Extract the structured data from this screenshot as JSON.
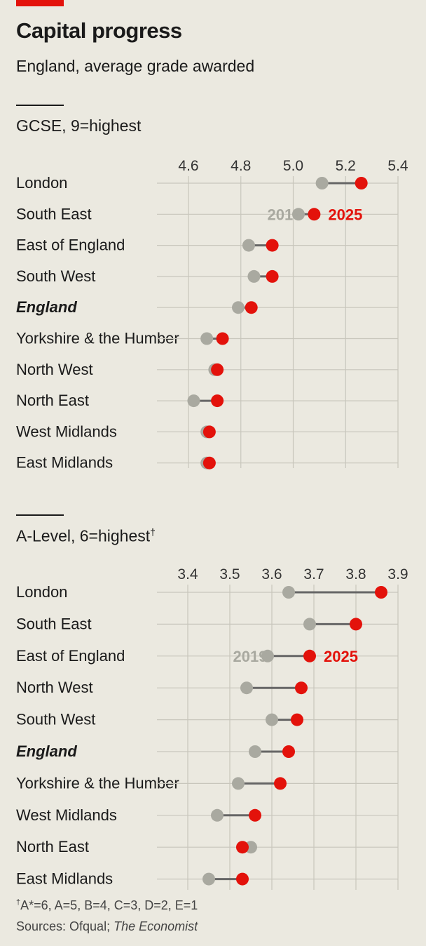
{
  "header": {
    "title": "Capital progress",
    "subtitle": "England, average grade awarded"
  },
  "colors": {
    "y2019": "#a9a9a0",
    "y2025": "#e3120b",
    "connector": "#666666",
    "grid": "#c8c6bc"
  },
  "chart_data": [
    {
      "type": "dot-plot",
      "title": "GCSE, 9=highest",
      "legend": [
        "2019",
        "2025"
      ],
      "xlim": [
        4.6,
        5.4
      ],
      "ticks": [
        "4.6",
        "4.8",
        "5.0",
        "5.2",
        "5.4"
      ],
      "tick_values": [
        4.6,
        4.8,
        5.0,
        5.2,
        5.4
      ],
      "legend_row": 1,
      "rows": [
        {
          "label": "London",
          "v2019": 5.11,
          "v2025": 5.26,
          "bold": false
        },
        {
          "label": "South East",
          "v2019": 5.02,
          "v2025": 5.08,
          "bold": false
        },
        {
          "label": "East of England",
          "v2019": 4.83,
          "v2025": 4.92,
          "bold": false
        },
        {
          "label": "South West",
          "v2019": 4.85,
          "v2025": 4.92,
          "bold": false
        },
        {
          "label": "England",
          "v2019": 4.79,
          "v2025": 4.84,
          "bold": true
        },
        {
          "label": "Yorkshire & the Humber",
          "v2019": 4.67,
          "v2025": 4.73,
          "bold": false
        },
        {
          "label": "North West",
          "v2019": 4.7,
          "v2025": 4.71,
          "bold": false
        },
        {
          "label": "North East",
          "v2019": 4.62,
          "v2025": 4.71,
          "bold": false
        },
        {
          "label": "West Midlands",
          "v2019": 4.67,
          "v2025": 4.68,
          "bold": false
        },
        {
          "label": "East Midlands",
          "v2019": 4.67,
          "v2025": 4.68,
          "bold": false
        }
      ]
    },
    {
      "type": "dot-plot",
      "title": "A-Level, 6=highest",
      "title_mark": "†",
      "legend": [
        "2019",
        "2025"
      ],
      "xlim": [
        3.4,
        3.9
      ],
      "ticks": [
        "3.4",
        "3.5",
        "3.6",
        "3.7",
        "3.8",
        "3.9"
      ],
      "tick_values": [
        3.4,
        3.5,
        3.6,
        3.7,
        3.8,
        3.9
      ],
      "legend_row": 2,
      "rows": [
        {
          "label": "London",
          "v2019": 3.64,
          "v2025": 3.86,
          "bold": false
        },
        {
          "label": "South East",
          "v2019": 3.69,
          "v2025": 3.8,
          "bold": false
        },
        {
          "label": "East of England",
          "v2019": 3.59,
          "v2025": 3.69,
          "bold": false
        },
        {
          "label": "North West",
          "v2019": 3.54,
          "v2025": 3.67,
          "bold": false
        },
        {
          "label": "South West",
          "v2019": 3.6,
          "v2025": 3.66,
          "bold": false
        },
        {
          "label": "England",
          "v2019": 3.56,
          "v2025": 3.64,
          "bold": true
        },
        {
          "label": "Yorkshire & the Humber",
          "v2019": 3.52,
          "v2025": 3.62,
          "bold": false
        },
        {
          "label": "West Midlands",
          "v2019": 3.47,
          "v2025": 3.56,
          "bold": false
        },
        {
          "label": "North East",
          "v2019": 3.55,
          "v2025": 3.53,
          "bold": false
        },
        {
          "label": "East Midlands",
          "v2019": 3.45,
          "v2025": 3.53,
          "bold": false
        }
      ]
    }
  ],
  "footnotes": {
    "mark": "†",
    "grade_key": "A*=6, A=5, B=4, C=3, D=2, E=1",
    "sources_prefix": "Sources: Ofqual; ",
    "sources_publication": "The Economist"
  }
}
